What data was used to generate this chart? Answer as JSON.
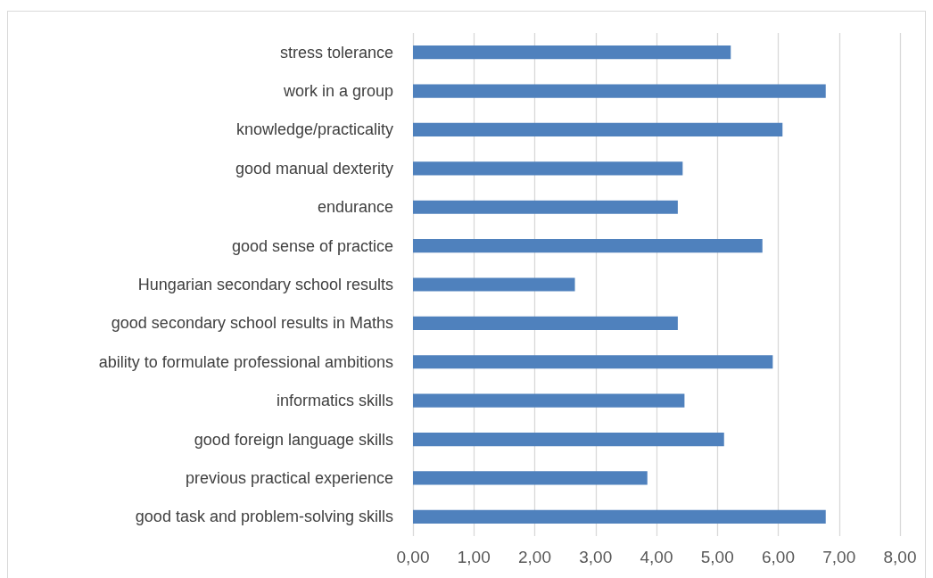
{
  "chart_data": {
    "type": "bar",
    "orientation": "horizontal",
    "categories": [
      "stress tolerance",
      "work in a group",
      "knowledge/practicality",
      "good manual dexterity",
      "endurance",
      "good sense of practice",
      "Hungarian secondary school results",
      "good secondary school results in Maths",
      "ability to formulate professional ambitions",
      "informatics skills",
      "good foreign language skills",
      "previous practical experience",
      "good task and problem-solving skills"
    ],
    "values": [
      5.22,
      6.78,
      6.07,
      4.43,
      4.35,
      5.74,
      2.66,
      4.35,
      5.91,
      4.46,
      5.11,
      3.85,
      6.78
    ],
    "color": "#4f81bd",
    "xlim": [
      0,
      8
    ],
    "xticks": [
      {
        "value": 0,
        "label": "0,00"
      },
      {
        "value": 1,
        "label": "1,00"
      },
      {
        "value": 2,
        "label": "2,00"
      },
      {
        "value": 3,
        "label": "3,00"
      },
      {
        "value": 4,
        "label": "4,00"
      },
      {
        "value": 5,
        "label": "5,00"
      },
      {
        "value": 6,
        "label": "6,00"
      },
      {
        "value": 7,
        "label": "7,00"
      },
      {
        "value": 8,
        "label": "8,00"
      }
    ],
    "grid": "x"
  }
}
